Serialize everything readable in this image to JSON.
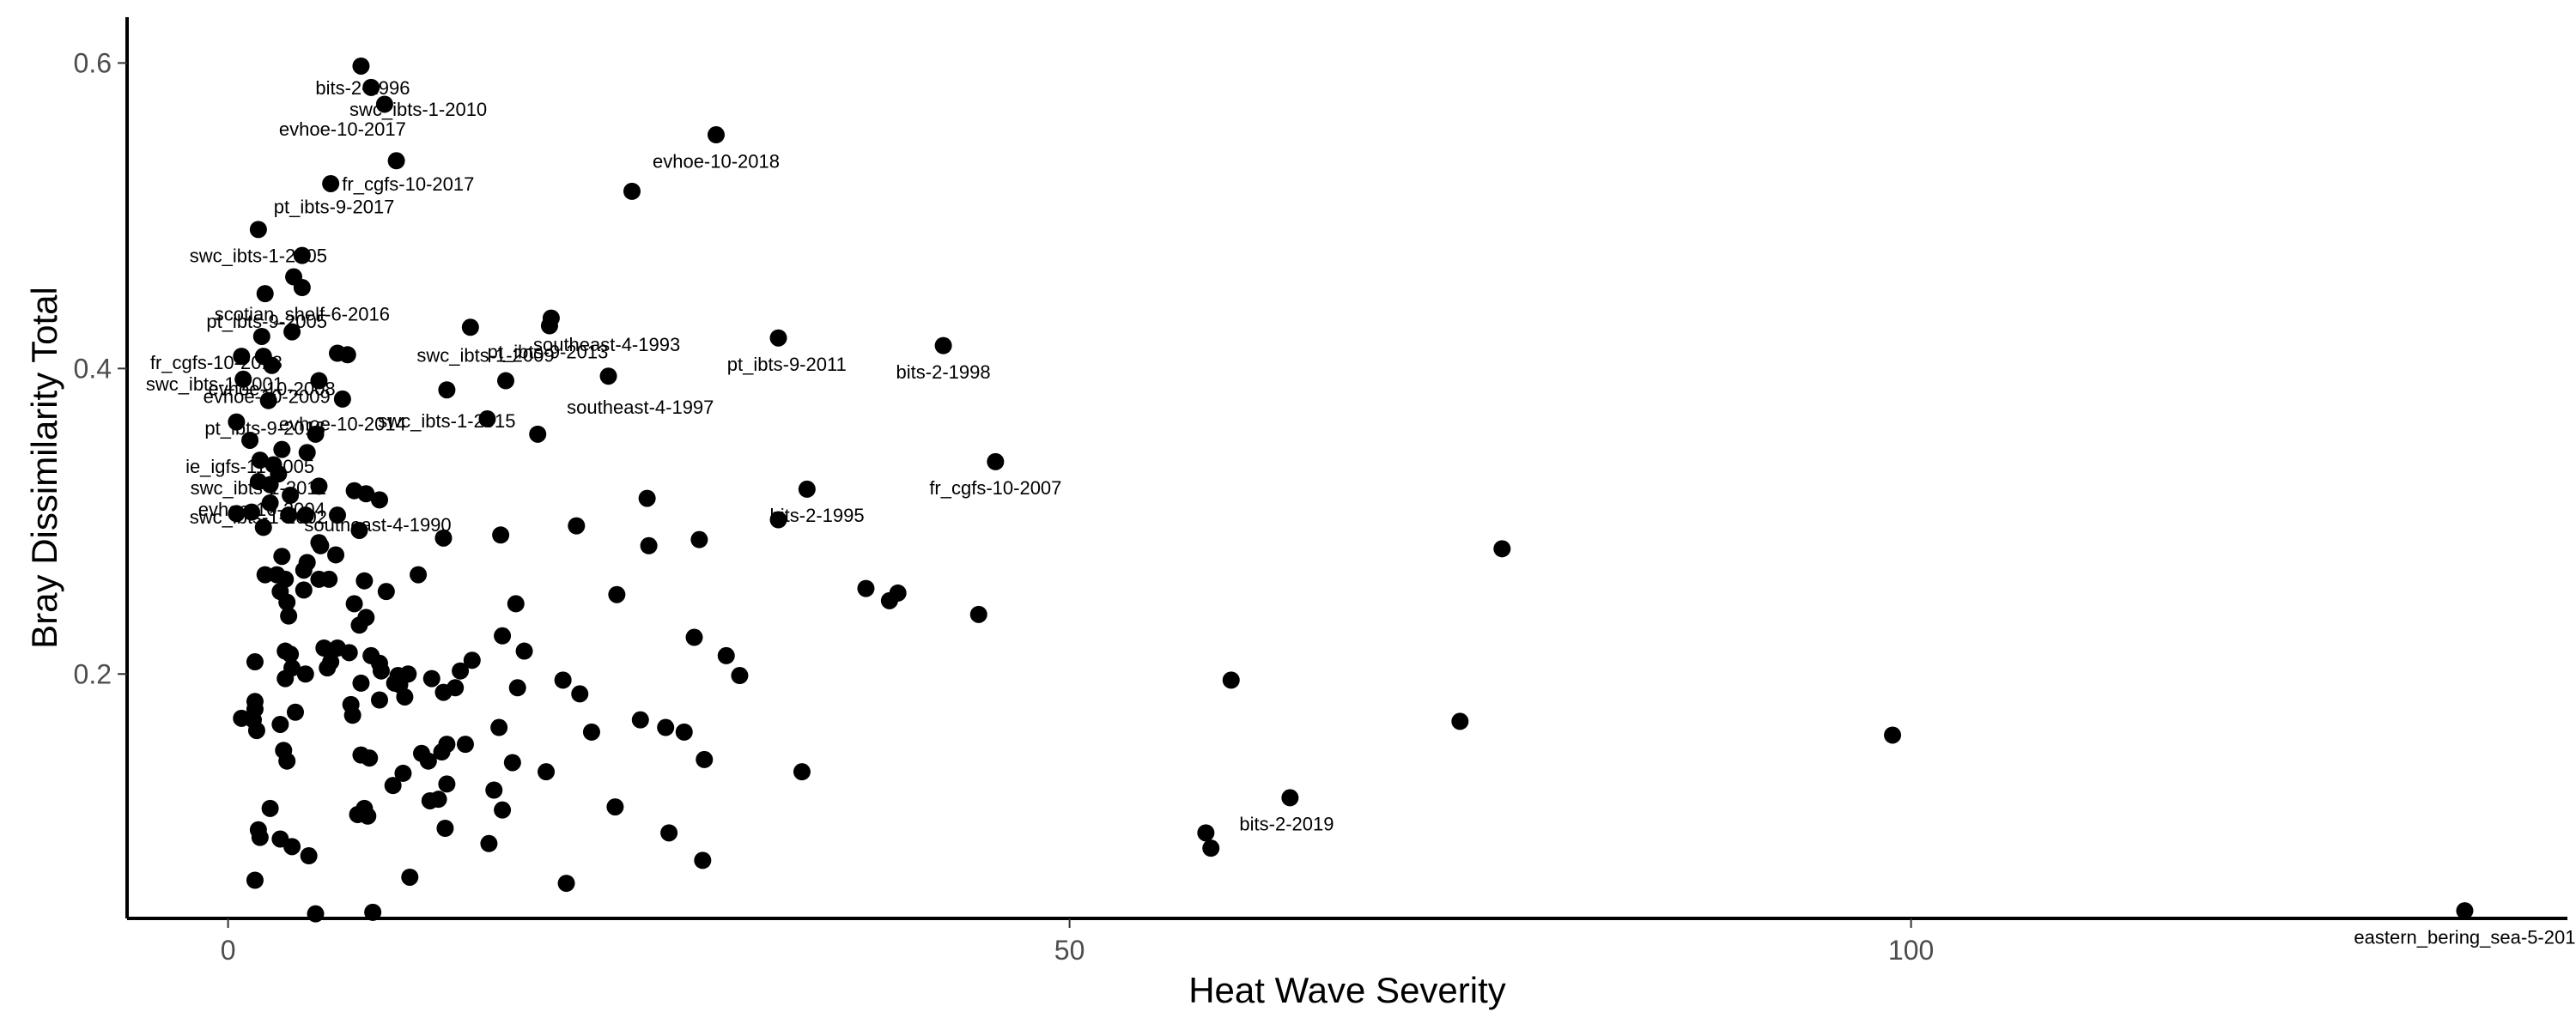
{
  "chart_data": {
    "type": "scatter",
    "xlabel": "Heat Wave Severity",
    "ylabel": "Bray Dissimilarity Total",
    "xlim": [
      -6,
      139
    ],
    "ylim": [
      0.04,
      0.63
    ],
    "xticks": [
      0,
      50,
      100
    ],
    "yticks": [
      0.2,
      0.4,
      0.6
    ],
    "grid": false,
    "point_color": "#000000",
    "points": [
      [
        7.9,
        0.598
      ],
      [
        8.5,
        0.584
      ],
      [
        9.3,
        0.573
      ],
      [
        29,
        0.553
      ],
      [
        10,
        0.536
      ],
      [
        6.1,
        0.521
      ],
      [
        24,
        0.516
      ],
      [
        1.8,
        0.491
      ],
      [
        3.9,
        0.46
      ],
      [
        4.4,
        0.474
      ],
      [
        4.4,
        0.453
      ],
      [
        2.2,
        0.449
      ],
      [
        19.2,
        0.433
      ],
      [
        14.4,
        0.427
      ],
      [
        19.1,
        0.428
      ],
      [
        3.8,
        0.424
      ],
      [
        2,
        0.421
      ],
      [
        32.7,
        0.42
      ],
      [
        42.5,
        0.415
      ],
      [
        6.5,
        0.41
      ],
      [
        7.1,
        0.409
      ],
      [
        0.8,
        0.408
      ],
      [
        2.1,
        0.408
      ],
      [
        2.6,
        0.402
      ],
      [
        5.4,
        0.392
      ],
      [
        22.6,
        0.395
      ],
      [
        16.5,
        0.392
      ],
      [
        0.9,
        0.393
      ],
      [
        13,
        0.386
      ],
      [
        2.4,
        0.379
      ],
      [
        6.8,
        0.38
      ],
      [
        0.5,
        0.365
      ],
      [
        15.4,
        0.367
      ],
      [
        5.2,
        0.357
      ],
      [
        18.4,
        0.357
      ],
      [
        1.3,
        0.353
      ],
      [
        3.2,
        0.347
      ],
      [
        4.7,
        0.345
      ],
      [
        1.9,
        0.34
      ],
      [
        2.7,
        0.337
      ],
      [
        45.6,
        0.339
      ],
      [
        3,
        0.331
      ],
      [
        1.8,
        0.326
      ],
      [
        2.5,
        0.324
      ],
      [
        5.4,
        0.323
      ],
      [
        7.5,
        0.32
      ],
      [
        34.4,
        0.321
      ],
      [
        24.9,
        0.315
      ],
      [
        8.2,
        0.318
      ],
      [
        3.7,
        0.317
      ],
      [
        9,
        0.314
      ],
      [
        2.5,
        0.312
      ],
      [
        1.4,
        0.306
      ],
      [
        0.5,
        0.305
      ],
      [
        3.6,
        0.304
      ],
      [
        4.6,
        0.304
      ],
      [
        6.5,
        0.304
      ],
      [
        32.7,
        0.301
      ],
      [
        20.7,
        0.297
      ],
      [
        2.1,
        0.296
      ],
      [
        7.8,
        0.294
      ],
      [
        16.2,
        0.291
      ],
      [
        12.8,
        0.289
      ],
      [
        28,
        0.288
      ],
      [
        5.4,
        0.286
      ],
      [
        5.5,
        0.284
      ],
      [
        25,
        0.284
      ],
      [
        75.7,
        0.282
      ],
      [
        3.2,
        0.277
      ],
      [
        6.4,
        0.278
      ],
      [
        4.7,
        0.273
      ],
      [
        4.5,
        0.268
      ],
      [
        2.2,
        0.265
      ],
      [
        2.9,
        0.265
      ],
      [
        3.4,
        0.262
      ],
      [
        5.4,
        0.262
      ],
      [
        8.1,
        0.261
      ],
      [
        6,
        0.262
      ],
      [
        11.3,
        0.265
      ],
      [
        3.1,
        0.254
      ],
      [
        4.5,
        0.255
      ],
      [
        37.9,
        0.256
      ],
      [
        39.8,
        0.253
      ],
      [
        39.3,
        0.248
      ],
      [
        23.1,
        0.252
      ],
      [
        9.4,
        0.254
      ],
      [
        3.5,
        0.247
      ],
      [
        7.5,
        0.246
      ],
      [
        17.1,
        0.246
      ],
      [
        8.2,
        0.237
      ],
      [
        3.6,
        0.238
      ],
      [
        44.6,
        0.239
      ],
      [
        7.8,
        0.232
      ],
      [
        16.3,
        0.225
      ],
      [
        27.7,
        0.224
      ],
      [
        5.7,
        0.217
      ],
      [
        6.5,
        0.217
      ],
      [
        3.7,
        0.213
      ],
      [
        3.4,
        0.215
      ],
      [
        7.2,
        0.214
      ],
      [
        17.6,
        0.215
      ],
      [
        8.5,
        0.212
      ],
      [
        6.1,
        0.208
      ],
      [
        9,
        0.207
      ],
      [
        14.5,
        0.209
      ],
      [
        29.6,
        0.212
      ],
      [
        30.4,
        0.199
      ],
      [
        3.8,
        0.204
      ],
      [
        1.6,
        0.208
      ],
      [
        5.9,
        0.204
      ],
      [
        9.1,
        0.202
      ],
      [
        13.8,
        0.202
      ],
      [
        19.9,
        0.196
      ],
      [
        59.6,
        0.196
      ],
      [
        4.6,
        0.2
      ],
      [
        10.1,
        0.199
      ],
      [
        10.7,
        0.2
      ],
      [
        12.1,
        0.197
      ],
      [
        3.4,
        0.197
      ],
      [
        7.9,
        0.194
      ],
      [
        9.9,
        0.194
      ],
      [
        10.2,
        0.193
      ],
      [
        13.5,
        0.191
      ],
      [
        20.9,
        0.187
      ],
      [
        10.5,
        0.185
      ],
      [
        9,
        0.183
      ],
      [
        17.2,
        0.191
      ],
      [
        12.8,
        0.188
      ],
      [
        7.3,
        0.18
      ],
      [
        1.6,
        0.182
      ],
      [
        0.8,
        0.171
      ],
      [
        1.6,
        0.177
      ],
      [
        4,
        0.175
      ],
      [
        1.5,
        0.17
      ],
      [
        24.5,
        0.17
      ],
      [
        3.1,
        0.167
      ],
      [
        7.4,
        0.173
      ],
      [
        26,
        0.165
      ],
      [
        73.2,
        0.169
      ],
      [
        1.7,
        0.163
      ],
      [
        27.1,
        0.162
      ],
      [
        16.1,
        0.165
      ],
      [
        21.6,
        0.162
      ],
      [
        98.9,
        0.16
      ],
      [
        13,
        0.154
      ],
      [
        14.1,
        0.154
      ],
      [
        11.5,
        0.148
      ],
      [
        12.7,
        0.149
      ],
      [
        3.3,
        0.15
      ],
      [
        7.9,
        0.147
      ],
      [
        8.4,
        0.145
      ],
      [
        3.5,
        0.143
      ],
      [
        11.9,
        0.143
      ],
      [
        28.3,
        0.144
      ],
      [
        16.9,
        0.142
      ],
      [
        18.9,
        0.136
      ],
      [
        34.1,
        0.136
      ],
      [
        10.4,
        0.135
      ],
      [
        13,
        0.128
      ],
      [
        9.8,
        0.127
      ],
      [
        15.8,
        0.124
      ],
      [
        16.3,
        0.111
      ],
      [
        12,
        0.117
      ],
      [
        12.5,
        0.118
      ],
      [
        63.1,
        0.119
      ],
      [
        23,
        0.113
      ],
      [
        2.5,
        0.112
      ],
      [
        8.1,
        0.112
      ],
      [
        7.7,
        0.108
      ],
      [
        8.3,
        0.107
      ],
      [
        12.9,
        0.099
      ],
      [
        1.8,
        0.098
      ],
      [
        58.1,
        0.096
      ],
      [
        26.2,
        0.096
      ],
      [
        1.9,
        0.093
      ],
      [
        3.1,
        0.092
      ],
      [
        15.5,
        0.089
      ],
      [
        3.8,
        0.087
      ],
      [
        58.4,
        0.086
      ],
      [
        4.8,
        0.081
      ],
      [
        28.2,
        0.078
      ],
      [
        1.6,
        0.065
      ],
      [
        10.8,
        0.067
      ],
      [
        20.1,
        0.063
      ],
      [
        5.2,
        0.043
      ],
      [
        8.6,
        0.044
      ],
      [
        132.9,
        0.045
      ]
    ],
    "annotations": [
      {
        "text": "bits-2-1996",
        "x": 8.0,
        "y": 0.584
      },
      {
        "text": "swc_ibts-1-2010",
        "x": 11.3,
        "y": 0.57
      },
      {
        "text": "evhoe-10-2017",
        "x": 6.8,
        "y": 0.557
      },
      {
        "text": "evhoe-10-2018",
        "x": 29.0,
        "y": 0.536
      },
      {
        "text": "fr_cgfs-10-2017",
        "x": 10.7,
        "y": 0.521
      },
      {
        "text": "pt_ibts-9-2017",
        "x": 6.3,
        "y": 0.506
      },
      {
        "text": "swc_ibts-1-2005",
        "x": 1.8,
        "y": 0.474
      },
      {
        "text": "scotian_shelf-6-2016",
        "x": 4.4,
        "y": 0.436
      },
      {
        "text": "pt_ibts-9-2005",
        "x": 2.3,
        "y": 0.431
      },
      {
        "text": "southeast-4-1993",
        "x": 22.5,
        "y": 0.416
      },
      {
        "text": "pt_ibts-9-2013",
        "x": 19.0,
        "y": 0.411
      },
      {
        "text": "swc_ibts-1-2009",
        "x": 15.3,
        "y": 0.409
      },
      {
        "text": "pt_ibts-9-2011",
        "x": 33.2,
        "y": 0.403
      },
      {
        "text": "bits-2-1998",
        "x": 42.5,
        "y": 0.398
      },
      {
        "text": "fr_cgfs-10-2018",
        "x": -0.7,
        "y": 0.404
      },
      {
        "text": "swc_ibts-1-2001",
        "x": -0.8,
        "y": 0.39
      },
      {
        "text": "evhoe-10-2008",
        "x": 2.6,
        "y": 0.387
      },
      {
        "text": "evhoe-10-2009",
        "x": 2.3,
        "y": 0.382
      },
      {
        "text": "southeast-4-1997",
        "x": 24.5,
        "y": 0.375
      },
      {
        "text": "swc_ibts-1-2015",
        "x": 13.0,
        "y": 0.366
      },
      {
        "text": "pt_ibts-9-2016",
        "x": 2.2,
        "y": 0.361
      },
      {
        "text": "evhoe-10-2014",
        "x": 6.8,
        "y": 0.364
      },
      {
        "text": "ie_igfs-11-2005",
        "x": 1.3,
        "y": 0.336
      },
      {
        "text": "fr_cgfs-10-2007",
        "x": 45.6,
        "y": 0.322
      },
      {
        "text": "swc_ibts-1-2011",
        "x": 1.8,
        "y": 0.322
      },
      {
        "text": "evhoe-10-2004",
        "x": 2.0,
        "y": 0.308
      },
      {
        "text": "bits-2-1995",
        "x": 35.0,
        "y": 0.304
      },
      {
        "text": "swc_ibts-1-2002",
        "x": 1.8,
        "y": 0.303
      },
      {
        "text": "southeast-4-1990",
        "x": 8.9,
        "y": 0.298
      },
      {
        "text": "bits-2-2019",
        "x": 62.9,
        "y": 0.102
      },
      {
        "text": "eastern_bering_sea-5-201",
        "x": 132.9,
        "y": 0.028
      }
    ]
  }
}
